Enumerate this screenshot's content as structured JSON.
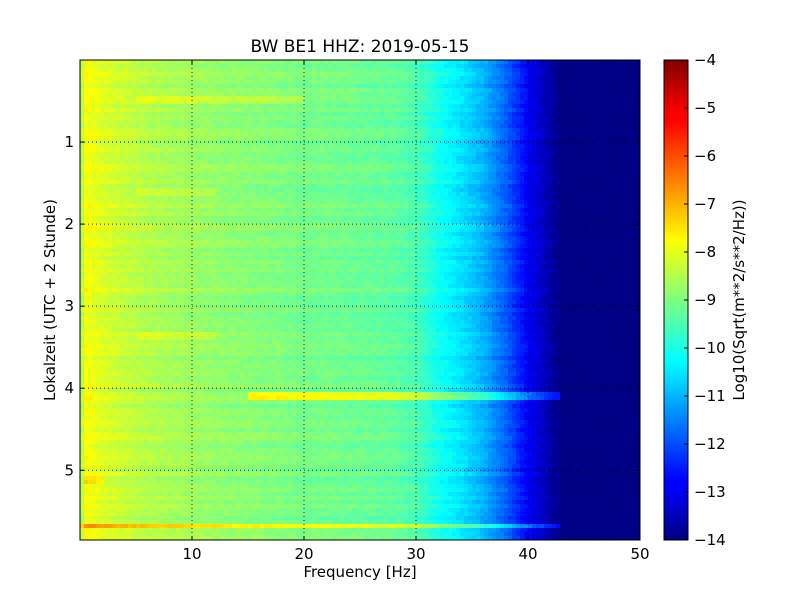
{
  "chart_data": [
    {
      "type": "heatmap",
      "title": "BW BE1 HHZ: 2019-05-15",
      "xlabel": "Frequency [Hz]",
      "ylabel": "Lokalzeit (UTC + 2 Stunde)",
      "xlim": [
        0,
        50
      ],
      "ylim": [
        5.85,
        0
      ],
      "y_axis_inverted": true,
      "xticks": [
        10,
        20,
        30,
        40,
        50
      ],
      "yticks": [
        1,
        2,
        3,
        4,
        5
      ],
      "grid": "dotted",
      "colormap": "jet",
      "colorbar": {
        "label": "Log10(Sqrt(m**2/s**2/Hz))",
        "range": [
          -14,
          -4
        ],
        "ticks": [
          -4,
          -5,
          -6,
          -7,
          -8,
          -9,
          -10,
          -11,
          -12,
          -13,
          -14
        ]
      },
      "spectrum_profile": {
        "frequency": [
          0,
          0.5,
          1,
          2,
          4,
          6,
          8,
          10,
          12,
          15,
          18,
          20,
          22,
          25,
          28,
          29,
          30,
          31,
          32,
          34,
          36,
          38,
          40,
          42,
          43,
          45,
          50
        ],
        "value": [
          -8.8,
          -7.8,
          -7.9,
          -8.1,
          -8.3,
          -8.5,
          -8.6,
          -8.7,
          -8.8,
          -8.9,
          -9.0,
          -9.1,
          -9.1,
          -9.2,
          -9.3,
          -9.4,
          -9.5,
          -9.8,
          -10.1,
          -10.5,
          -11.0,
          -11.8,
          -12.8,
          -13.6,
          -14.0,
          -14.0,
          -14.0
        ]
      },
      "bands": [
        {
          "time": 4.08,
          "freq_range": [
            15,
            45
          ],
          "delta": 1.2
        },
        {
          "time": 5.68,
          "freq_range": [
            0,
            46
          ],
          "delta": 1.2
        },
        {
          "time": 0.5,
          "freq_range": [
            5,
            20
          ],
          "delta": 0.4
        },
        {
          "time": 1.6,
          "freq_range": [
            5,
            12
          ],
          "delta": 0.35
        },
        {
          "time": 3.38,
          "freq_range": [
            5,
            12
          ],
          "delta": 0.35
        },
        {
          "time": 5.12,
          "freq_range": [
            0.5,
            2
          ],
          "delta": 0.6
        }
      ]
    }
  ]
}
